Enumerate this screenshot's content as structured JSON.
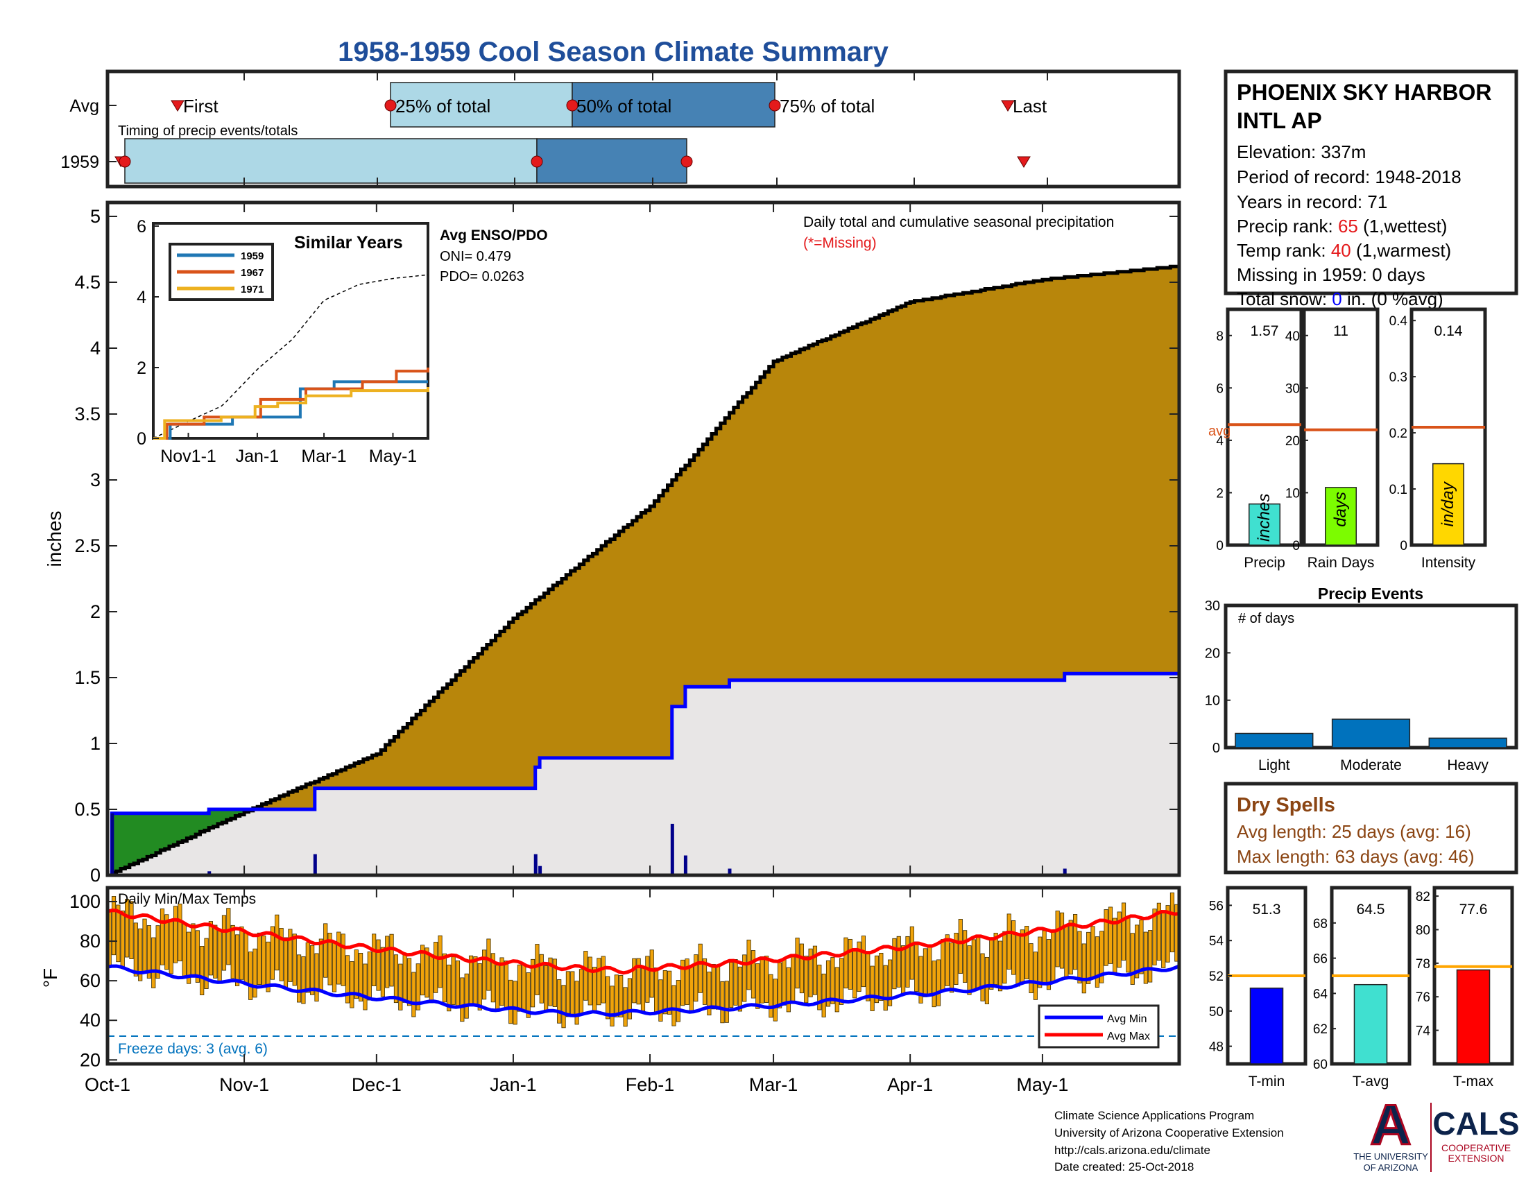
{
  "title": "1958-1959 Cool Season Climate Summary",
  "timing": {
    "caption": "Timing of precip events/totals",
    "row_avg": "Avg",
    "row_year": "1959",
    "labels": {
      "first": "First",
      "p25": "25% of total",
      "p50": "50% of total",
      "p75": "75% of total",
      "last": "Last"
    },
    "avg": {
      "first": "Oct-17",
      "p25": "Dec-3",
      "p50": "Jan-12",
      "p75": "Feb-25",
      "last": "May-7"
    },
    "year": {
      "first": "Oct-2",
      "p25": "Oct-5",
      "p50": "Jan-5",
      "p75": "Feb-7",
      "last": "May-10"
    }
  },
  "station": {
    "name_line1": "PHOENIX SKY HARBOR",
    "name_line2": "INTL AP",
    "elevation": "Elevation: 337m",
    "period": "Period of record: 1948-2018",
    "years": "Years in record: 71",
    "precip_rank_label": "Precip rank: ",
    "precip_rank_value": "65",
    "precip_rank_suffix": " (1,wettest)",
    "temp_rank_label": "Temp rank: ",
    "temp_rank_value": "40",
    "temp_rank_suffix": " (1,warmest)",
    "missing": "Missing in 1959: 0 days",
    "snow_label": "Total snow: ",
    "snow_value": "0",
    "snow_suffix": " in. (0 %avg)",
    "rank_color": "#e41a1c",
    "snow_color": "#0000ff"
  },
  "main_chart": {
    "ylabel": "inches",
    "legend_text": "Daily total and cumulative seasonal precipitation",
    "missing_note": "(*=Missing)",
    "missing_color": "#e41a1c",
    "y_ticks": [
      "0",
      "0.5",
      "1",
      "1.5",
      "2",
      "2.5",
      "3",
      "3.5",
      "4",
      "4.5",
      "5"
    ],
    "x_ticks": [
      "Oct-1",
      "Nov-1",
      "Dec-1",
      "Jan-1",
      "Feb-1",
      "Mar-1",
      "Apr-1",
      "May-1"
    ],
    "ylim": [
      0,
      5
    ],
    "colors": {
      "avg_fill": "#b8860b",
      "below_fill": "#e8e6e6",
      "above_fill": "#228b22",
      "year_line": "#0000ff",
      "avg_line": "#000000"
    }
  },
  "inset": {
    "title": "Similar Years",
    "enso_title": "Avg ENSO/PDO",
    "oni": "ONI= 0.479",
    "pdo": "PDO= 0.0263",
    "y_ticks": [
      "0",
      "2",
      "4",
      "6"
    ],
    "x_ticks": [
      "Nov1-1",
      "Jan-1",
      "Mar-1",
      "May-1"
    ],
    "legend": [
      "1959",
      "1967",
      "1971"
    ],
    "colors": [
      "#1f77b4",
      "#d95319",
      "#edb120"
    ]
  },
  "temps": {
    "caption": "Daily Min/Max Temps",
    "ylabel": "°F",
    "y_ticks": [
      "20",
      "40",
      "60",
      "80",
      "100"
    ],
    "freeze_text": "Freeze days: 3 (avg. 6)",
    "freeze_color": "#0072bd",
    "legend_min": "Avg Min",
    "legend_max": "Avg Max",
    "bar_color": "#f0a30a",
    "min_line_color": "#0000ff",
    "max_line_color": "#ff0000"
  },
  "precip_boxes": [
    {
      "label": "Precip",
      "value": "1.57",
      "unit": "inches",
      "avg_label": "avg",
      "ticks": [
        "0",
        "2",
        "4",
        "6",
        "8"
      ],
      "color": "#40e0d0",
      "val": 1.57,
      "avg": 4.6,
      "max": 9.0
    },
    {
      "label": "Rain Days",
      "value": "11",
      "unit": "days",
      "ticks": [
        "0",
        "10",
        "20",
        "30",
        "40"
      ],
      "color": "#7cfc00",
      "val": 11,
      "avg": 22,
      "max": 45
    },
    {
      "label": "Intensity",
      "value": "0.14",
      "unit": "in/day",
      "ticks": [
        "0",
        "0.1",
        "0.2",
        "0.3",
        "0.4"
      ],
      "color": "#ffd700",
      "val": 0.145,
      "avg": 0.21,
      "max": 0.42
    }
  ],
  "events_chart": {
    "title": "Precip Events",
    "ylabel_note": "# of days",
    "categories": [
      "Light",
      "Moderate",
      "Heavy"
    ],
    "values": [
      3,
      6,
      2
    ],
    "ylim": [
      0,
      30
    ],
    "y_ticks": [
      "0",
      "10",
      "20",
      "30"
    ],
    "color": "#0072bd"
  },
  "dry_spells": {
    "title": "Dry Spells",
    "avg": "Avg length: 25 days (avg: 16)",
    "max": "Max length: 63 days (avg: 46)",
    "color": "#8b4513"
  },
  "temp_boxes": [
    {
      "label": "T-min",
      "value": "51.3",
      "ticks": [
        "48",
        "50",
        "52",
        "54",
        "56"
      ],
      "color": "#0000ff",
      "val": 51.3,
      "avg": 52.0,
      "min": 47.0,
      "max": 57.0
    },
    {
      "label": "T-avg",
      "value": "64.5",
      "ticks": [
        "60",
        "62",
        "64",
        "66",
        "68"
      ],
      "color": "#40e0d0",
      "val": 64.5,
      "avg": 65.0,
      "min": 60.0,
      "max": 70.0
    },
    {
      "label": "T-max",
      "value": "77.6",
      "ticks": [
        "74",
        "76",
        "78",
        "80",
        "82"
      ],
      "color": "#ff0000",
      "val": 77.6,
      "avg": 77.8,
      "min": 72.0,
      "max": 82.5
    }
  ],
  "avg_line_color": "#d95319",
  "temp_avg_line_color": "#ffa500",
  "footer": {
    "line1": "Climate Science Applications Program",
    "line2": "University of Arizona Cooperative Extension",
    "line3": "http://cals.arizona.edu/climate",
    "line4": " Date created: 25-Oct-2018",
    "logo_letter": "A",
    "logo_text1": "THE UNIVERSITY",
    "logo_text2": "OF ARIZONA",
    "cals_text": "CALS",
    "cals_sub1": "COOPERATIVE",
    "cals_sub2": "EXTENSION"
  },
  "chart_data": {
    "type": "area",
    "title": "1958-1959 Cool Season Climate Summary",
    "ylabel": "inches",
    "xlabel": "",
    "ylim": [
      0,
      5
    ],
    "categories": [
      "Oct-1",
      "Nov-1",
      "Dec-1",
      "Jan-1",
      "Feb-1",
      "Mar-1",
      "Apr-1",
      "May-1",
      "May-31"
    ],
    "series": [
      {
        "name": "Avg cumulative",
        "values": [
          0.0,
          0.48,
          0.92,
          1.95,
          2.8,
          3.9,
          4.35,
          4.52,
          4.62
        ]
      },
      {
        "name": "1959 cumulative",
        "values": [
          0.0,
          0.5,
          0.66,
          0.66,
          0.9,
          1.52,
          1.52,
          1.57,
          1.57
        ]
      }
    ],
    "daily_precip": [
      {
        "date": "Oct-2",
        "value": 0.47
      },
      {
        "date": "Oct-24",
        "value": 0.03
      },
      {
        "date": "Nov-17",
        "value": 0.16
      },
      {
        "date": "Jan-6",
        "value": 0.16
      },
      {
        "date": "Jan-7",
        "value": 0.07
      },
      {
        "date": "Feb-6",
        "value": 0.39
      },
      {
        "date": "Feb-9",
        "value": 0.15
      },
      {
        "date": "Feb-19",
        "value": 0.05
      },
      {
        "date": "May-6",
        "value": 0.05
      }
    ]
  }
}
